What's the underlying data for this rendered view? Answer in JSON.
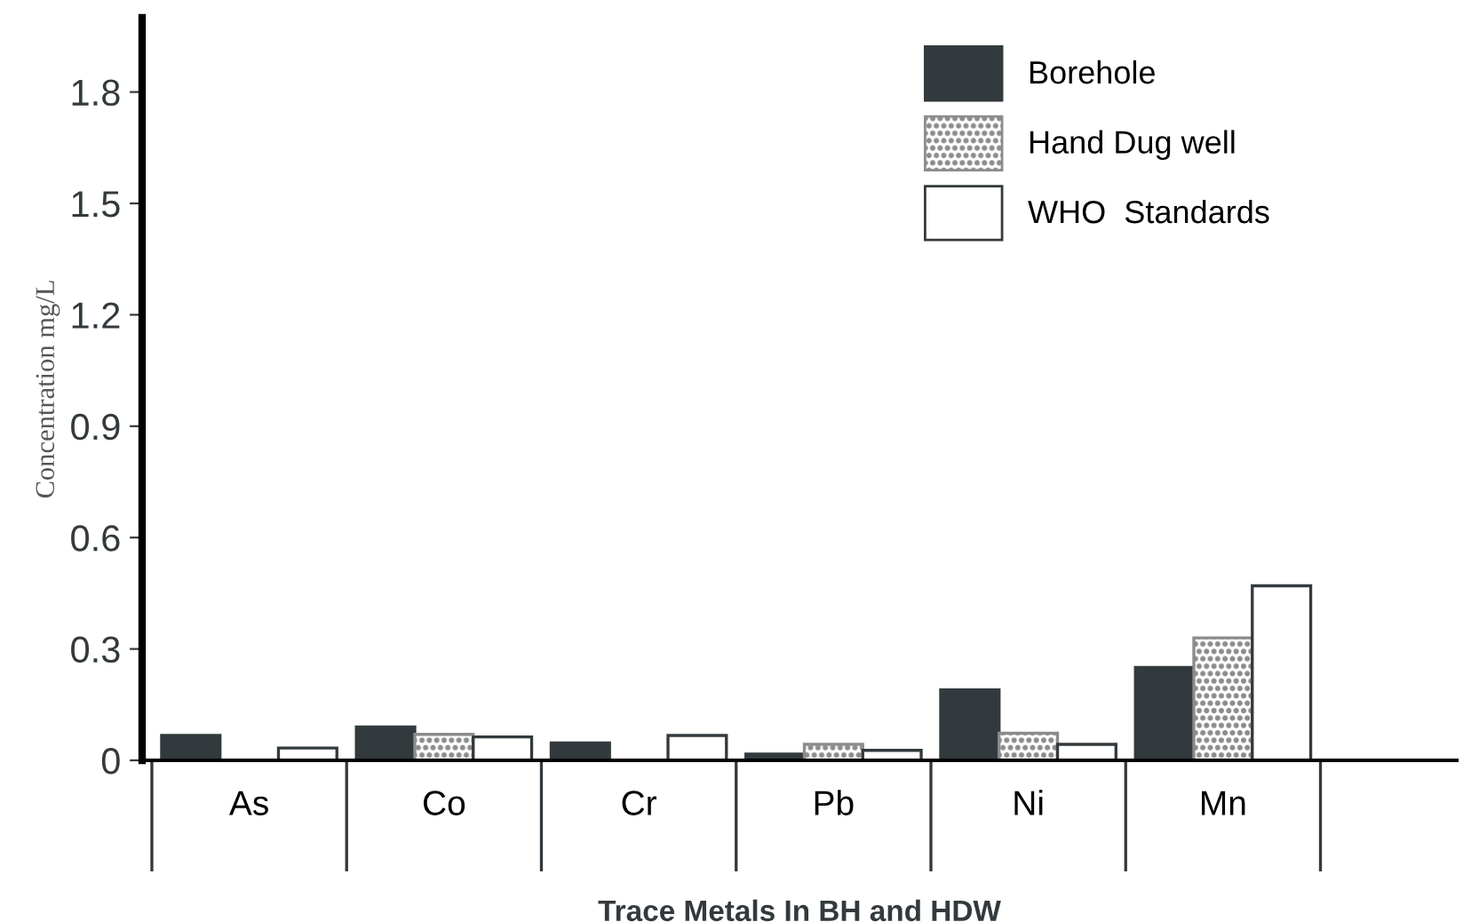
{
  "chart_data": {
    "type": "bar",
    "xlabel": "Trace Metals In BH and HDW",
    "ylabel": "Concentration mg/L",
    "categories": [
      "As",
      "Co",
      "Cr",
      "Pb",
      "Ni",
      "Mn"
    ],
    "series": [
      {
        "name": "Borehole",
        "color": "#333a3d",
        "values": [
          0.067,
          0.09,
          0.047,
          0.017,
          0.19,
          0.25
        ]
      },
      {
        "name": "Hand Dug well",
        "color": "#8c8c8c",
        "values": [
          null,
          0.07,
          null,
          0.043,
          0.073,
          0.33
        ]
      },
      {
        "name": "WHO  Standards",
        "color": "#ffffff",
        "values": [
          0.033,
          0.063,
          0.067,
          0.027,
          0.043,
          0.47
        ]
      }
    ],
    "ylim": [
      0,
      2.0
    ],
    "yticks": [
      0,
      0.3,
      0.6,
      0.9,
      1.2,
      1.5,
      1.8
    ],
    "grid": false,
    "legend": "top right"
  }
}
